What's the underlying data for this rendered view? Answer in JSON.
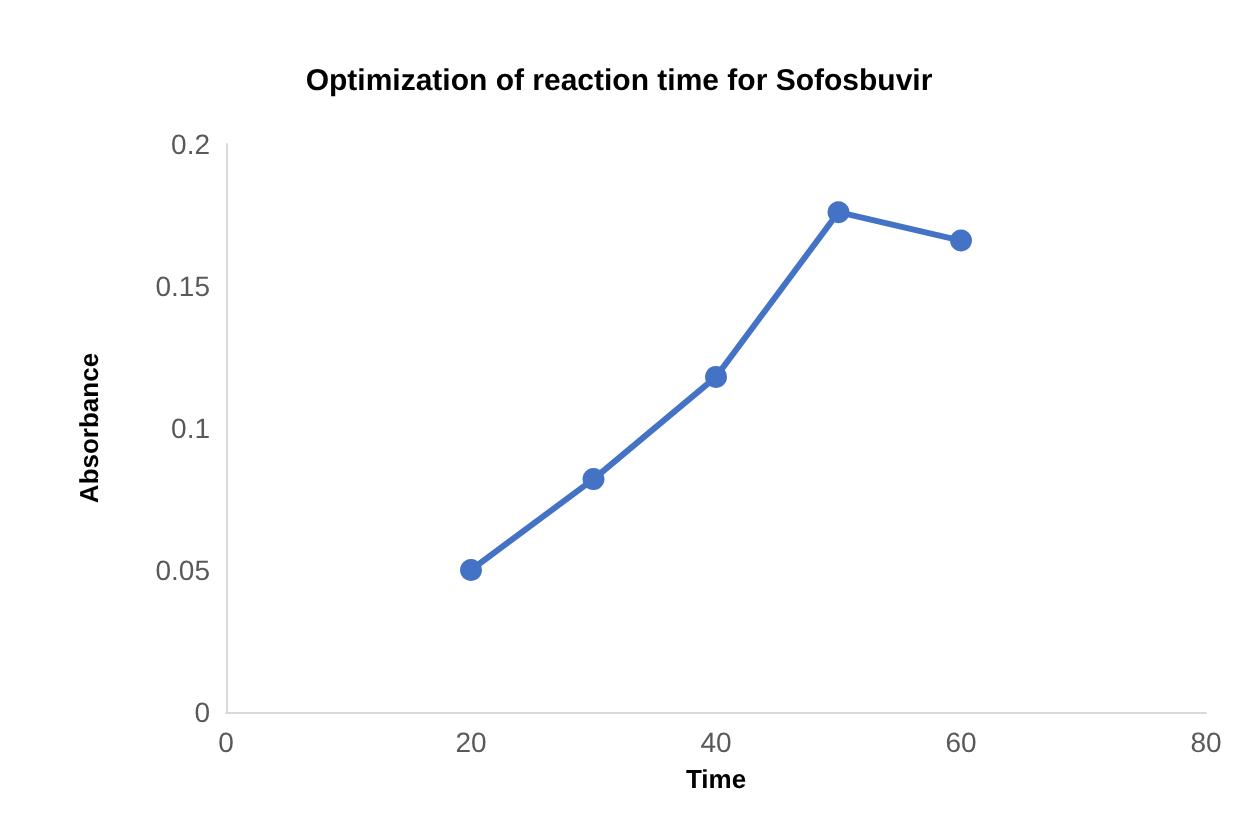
{
  "chart_data": {
    "type": "line",
    "title": "Optimization of reaction time for Sofosbuvir",
    "xlabel": "Time",
    "ylabel": "Absorbance",
    "x": [
      20,
      30,
      40,
      50,
      60
    ],
    "series": [
      {
        "color": "#4472c4",
        "values": [
          0.05,
          0.082,
          0.118,
          0.176,
          0.166
        ]
      }
    ],
    "xlim": [
      0,
      80
    ],
    "xticks": [
      0,
      20,
      40,
      60,
      80
    ],
    "ylim": [
      0,
      0.2
    ],
    "yticks": [
      0,
      0.05,
      0.1,
      0.15,
      0.2
    ],
    "grid": false,
    "marker": "circle",
    "line_style": "solid"
  }
}
